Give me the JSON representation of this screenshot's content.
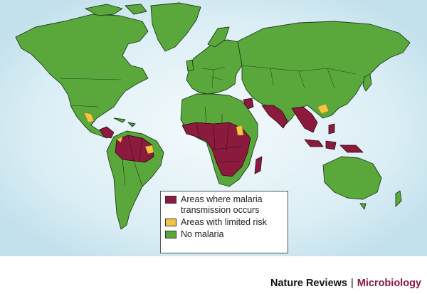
{
  "map": {
    "subject": "World malaria distribution",
    "colors": {
      "ocean": "#d7ecf4",
      "no_malaria": "#5aa83c",
      "transmission": "#8b1a3c",
      "limited_risk": "#f5c542"
    }
  },
  "legend": {
    "items": [
      {
        "label": "Areas where malaria transmission occurs",
        "color": "#8b1a3c"
      },
      {
        "label": "Areas with limited risk",
        "color": "#f5c542"
      },
      {
        "label": "No malaria",
        "color": "#5aa83c"
      }
    ]
  },
  "footer": {
    "publisher": "Nature Reviews",
    "separator": "|",
    "journal": "Microbiology"
  }
}
